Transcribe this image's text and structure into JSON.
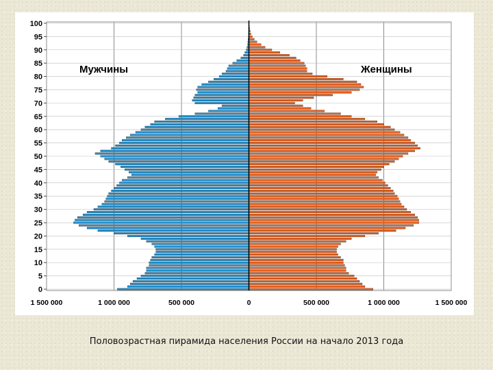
{
  "caption": "Половозрастная пирамида населения России на начало 2013 года",
  "chart_data": {
    "type": "bar",
    "orientation": "horizontal-pyramid",
    "series": [
      {
        "name": "Мужчины",
        "side": "left",
        "color": "#1f8fcf",
        "values": [
          975000,
          900000,
          880000,
          860000,
          830000,
          800000,
          770000,
          760000,
          760000,
          740000,
          740000,
          730000,
          720000,
          700000,
          690000,
          690000,
          700000,
          720000,
          760000,
          800000,
          900000,
          1000000,
          1120000,
          1200000,
          1260000,
          1300000,
          1290000,
          1270000,
          1230000,
          1200000,
          1150000,
          1120000,
          1090000,
          1070000,
          1060000,
          1050000,
          1040000,
          1020000,
          1000000,
          980000,
          960000,
          940000,
          900000,
          870000,
          890000,
          920000,
          950000,
          990000,
          1040000,
          1070000,
          1100000,
          1140000,
          1100000,
          1020000,
          990000,
          960000,
          940000,
          910000,
          880000,
          840000,
          800000,
          770000,
          730000,
          700000,
          620000,
          520000,
          400000,
          300000,
          230000,
          200000,
          400000,
          420000,
          410000,
          400000,
          380000,
          390000,
          380000,
          350000,
          300000,
          260000,
          220000,
          200000,
          170000,
          160000,
          150000,
          120000,
          90000,
          60000,
          40000,
          30000,
          20000,
          15000,
          10000,
          8000,
          6000,
          4000,
          3000,
          2000,
          1000,
          1000,
          500
        ]
      },
      {
        "name": "Женщины",
        "side": "right",
        "color": "#e8601c",
        "values": [
          920000,
          860000,
          840000,
          820000,
          800000,
          780000,
          740000,
          720000,
          720000,
          710000,
          700000,
          700000,
          680000,
          660000,
          650000,
          650000,
          660000,
          680000,
          720000,
          760000,
          860000,
          960000,
          1090000,
          1160000,
          1220000,
          1260000,
          1260000,
          1250000,
          1230000,
          1200000,
          1170000,
          1150000,
          1130000,
          1120000,
          1110000,
          1100000,
          1080000,
          1070000,
          1050000,
          1030000,
          1010000,
          990000,
          960000,
          940000,
          950000,
          980000,
          1000000,
          1040000,
          1080000,
          1110000,
          1140000,
          1180000,
          1230000,
          1270000,
          1250000,
          1230000,
          1200000,
          1180000,
          1150000,
          1120000,
          1080000,
          1050000,
          1000000,
          950000,
          860000,
          760000,
          680000,
          560000,
          460000,
          400000,
          340000,
          400000,
          480000,
          620000,
          760000,
          820000,
          850000,
          830000,
          800000,
          700000,
          580000,
          470000,
          430000,
          430000,
          420000,
          410000,
          380000,
          350000,
          300000,
          230000,
          170000,
          120000,
          90000,
          60000,
          40000,
          25000,
          15000,
          10000,
          6000,
          3000,
          1500
        ]
      }
    ],
    "age_axis": {
      "min": 0,
      "max": 100,
      "tick_labels": [
        "0",
        "5",
        "10",
        "15",
        "20",
        "25",
        "30",
        "35",
        "40",
        "45",
        "50",
        "55",
        "60",
        "65",
        "70",
        "75",
        "80",
        "85",
        "90",
        "95",
        "100"
      ]
    },
    "value_axis": {
      "range": [
        -1500000,
        1500000
      ],
      "tick_labels": [
        "1 500 000",
        "1 000 000",
        "500 000",
        "0",
        "500 000",
        "1 000 000",
        "1 500 000"
      ]
    },
    "legend_labels": [
      {
        "text": "Мужчины",
        "position": "upper-left",
        "color": "#1f8fcf"
      },
      {
        "text": "Женщины",
        "position": "upper-right",
        "color": "#e8601c"
      }
    ],
    "grid": true
  }
}
